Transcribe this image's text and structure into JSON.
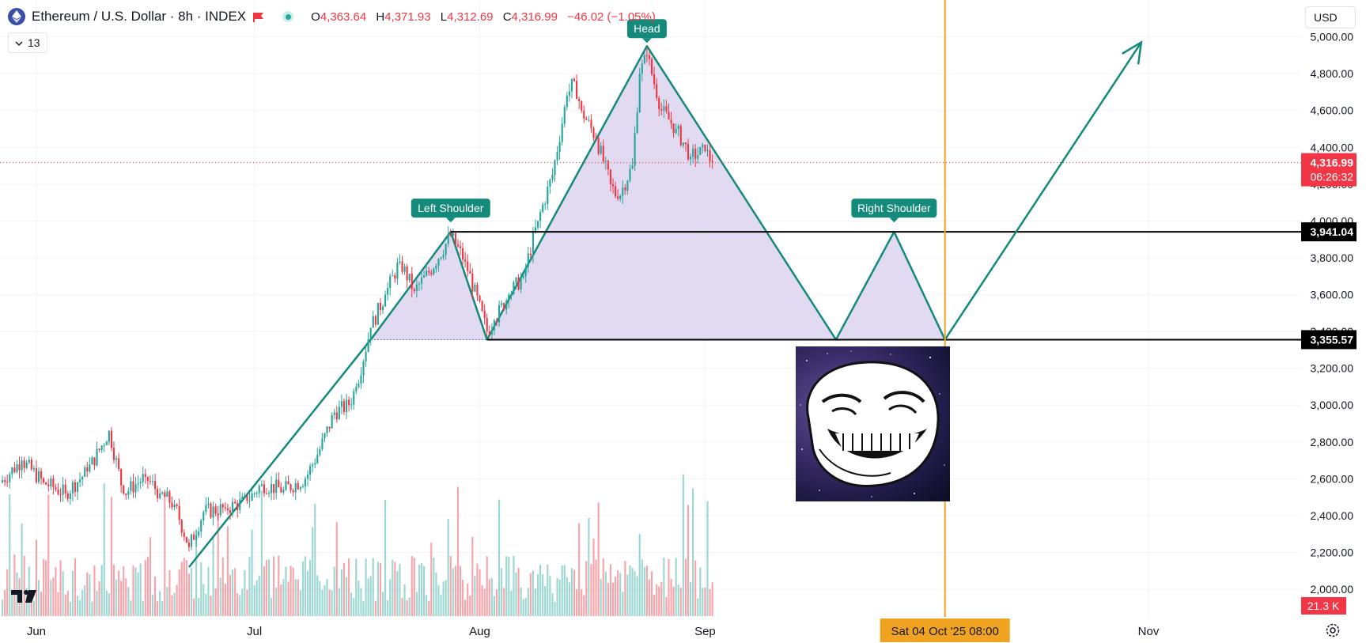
{
  "header": {
    "symbol_title": "Ethereum / U.S. Dollar · 8h · INDEX",
    "ohlc": [
      {
        "key": "O",
        "value": "4,363.64"
      },
      {
        "key": "H",
        "value": "4,371.93"
      },
      {
        "key": "L",
        "value": "4,312.69"
      },
      {
        "key": "C",
        "value": "4,316.99"
      },
      {
        "key": "",
        "value": "−46.02 (−1.05%)"
      }
    ],
    "indicator_count": "13",
    "currency": "USD"
  },
  "colors": {
    "up": "#26a69a",
    "down": "#f23645",
    "pattern_line": "#138a7a",
    "pattern_fill": "#dcd3ef",
    "crosshair": "#f0a320",
    "label_bg": "#138a7a",
    "black_label_bg": "#000000",
    "price_label_bg": "#f23645"
  },
  "chart_data": {
    "type": "candlestick",
    "title": "Ethereum / U.S. Dollar · 8h · INDEX",
    "ylim": [
      1850,
      5200
    ],
    "y_ticks": [
      2000,
      2200,
      2400,
      2600,
      2800,
      3000,
      3200,
      3400,
      3600,
      3800,
      4000,
      4200,
      4400,
      4600,
      4800,
      5000
    ],
    "y_tick_labels": [
      "2,000.00",
      "2,200.00",
      "2,400.00",
      "2,600.00",
      "2,800.00",
      "3,000.00",
      "3,200.00",
      "3,400.00",
      "3,600.00",
      "3,800.00",
      "4,000.00",
      "4,200.00",
      "4,400.00",
      "4,600.00",
      "4,800.00",
      "5,000.00"
    ],
    "x_labels": [
      {
        "label": "Jun",
        "date": "2025-06-01"
      },
      {
        "label": "Jul",
        "date": "2025-07-01"
      },
      {
        "label": "Aug",
        "date": "2025-08-01"
      },
      {
        "label": "Sep",
        "date": "2025-09-01"
      },
      {
        "label": "Nov",
        "date": "2025-11-01"
      }
    ],
    "x_range": [
      "2025-05-27",
      "2025-11-22"
    ],
    "grid": true,
    "price_path": [
      {
        "date": "2025-05-27",
        "close": 2580
      },
      {
        "date": "2025-05-30",
        "close": 2700
      },
      {
        "date": "2025-06-02",
        "close": 2580
      },
      {
        "date": "2025-06-05",
        "close": 2520
      },
      {
        "date": "2025-06-08",
        "close": 2640
      },
      {
        "date": "2025-06-10",
        "close": 2780
      },
      {
        "date": "2025-06-11",
        "close": 2860
      },
      {
        "date": "2025-06-13",
        "close": 2520
      },
      {
        "date": "2025-06-16",
        "close": 2610
      },
      {
        "date": "2025-06-18",
        "close": 2520
      },
      {
        "date": "2025-06-20",
        "close": 2460
      },
      {
        "date": "2025-06-22",
        "close": 2230
      },
      {
        "date": "2025-06-24",
        "close": 2420
      },
      {
        "date": "2025-06-27",
        "close": 2440
      },
      {
        "date": "2025-06-30",
        "close": 2480
      },
      {
        "date": "2025-07-02",
        "close": 2570
      },
      {
        "date": "2025-07-05",
        "close": 2540
      },
      {
        "date": "2025-07-08",
        "close": 2600
      },
      {
        "date": "2025-07-10",
        "close": 2760
      },
      {
        "date": "2025-07-12",
        "close": 2960
      },
      {
        "date": "2025-07-14",
        "close": 3000
      },
      {
        "date": "2025-07-15",
        "close": 3100
      },
      {
        "date": "2025-07-17",
        "close": 3420
      },
      {
        "date": "2025-07-19",
        "close": 3600
      },
      {
        "date": "2025-07-21",
        "close": 3780
      },
      {
        "date": "2025-07-23",
        "close": 3620
      },
      {
        "date": "2025-07-25",
        "close": 3720
      },
      {
        "date": "2025-07-28",
        "close": 3920
      },
      {
        "date": "2025-07-30",
        "close": 3780
      },
      {
        "date": "2025-08-02",
        "close": 3400
      },
      {
        "date": "2025-08-03",
        "close": 3460
      },
      {
        "date": "2025-08-05",
        "close": 3600
      },
      {
        "date": "2025-08-07",
        "close": 3700
      },
      {
        "date": "2025-08-09",
        "close": 4000
      },
      {
        "date": "2025-08-11",
        "close": 4250
      },
      {
        "date": "2025-08-13",
        "close": 4680
      },
      {
        "date": "2025-08-14",
        "close": 4760
      },
      {
        "date": "2025-08-15",
        "close": 4600
      },
      {
        "date": "2025-08-17",
        "close": 4450
      },
      {
        "date": "2025-08-19",
        "close": 4200
      },
      {
        "date": "2025-08-20",
        "close": 4120
      },
      {
        "date": "2025-08-22",
        "close": 4300
      },
      {
        "date": "2025-08-23",
        "close": 4800
      },
      {
        "date": "2025-08-24",
        "close": 4900
      },
      {
        "date": "2025-08-26",
        "close": 4600
      },
      {
        "date": "2025-08-28",
        "close": 4500
      },
      {
        "date": "2025-08-30",
        "close": 4350
      },
      {
        "date": "2025-09-01",
        "close": 4380
      },
      {
        "date": "2025-09-02",
        "close": 4317
      }
    ],
    "current_price": {
      "value": 4316.99,
      "label": "4,316.99",
      "countdown": "06:26:32"
    },
    "volume_label": "21.3 K",
    "levels": [
      {
        "value": 3941.04,
        "label": "3,941.04"
      },
      {
        "value": 3355.57,
        "label": "3,355.57"
      }
    ],
    "crosshair": {
      "date": "2025-10-04",
      "label": "Sat 04 Oct '25   08:00"
    },
    "pattern": {
      "type": "head-and-shoulders",
      "labels": [
        "Left Shoulder",
        "Head",
        "Right Shoulder"
      ],
      "points": [
        {
          "date": "2025-07-17",
          "price": 3355.57
        },
        {
          "date": "2025-07-28",
          "price": 3941.04
        },
        {
          "date": "2025-08-02",
          "price": 3355.57
        },
        {
          "date": "2025-08-24",
          "price": 4950
        },
        {
          "date": "2025-09-19",
          "price": 3355.57
        },
        {
          "date": "2025-09-27",
          "price": 3941.04
        },
        {
          "date": "2025-10-04",
          "price": 3355.57
        }
      ],
      "trend_line": [
        {
          "date": "2025-06-22",
          "price": 2120
        },
        {
          "date": "2025-07-17",
          "price": 3355.57
        }
      ],
      "arrow": [
        {
          "date": "2025-10-04",
          "price": 3355.57
        },
        {
          "date": "2025-10-31",
          "price": 4970
        }
      ]
    }
  }
}
